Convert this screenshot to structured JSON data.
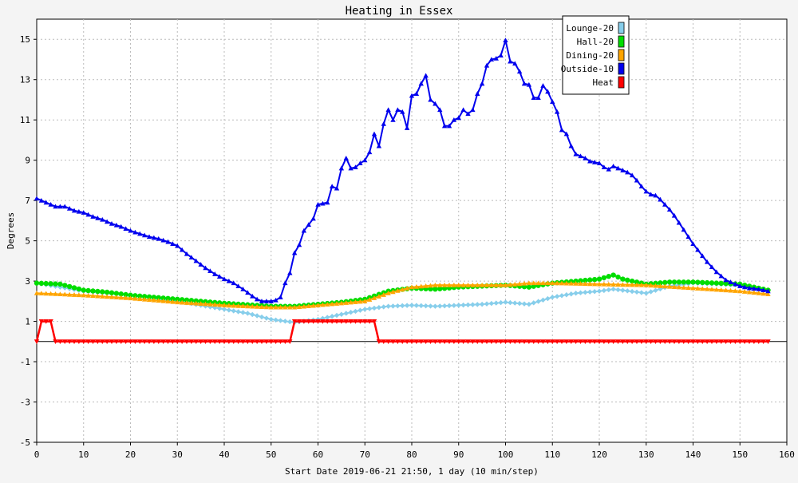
{
  "chart_data": {
    "type": "line",
    "title": "Heating in Essex",
    "xlabel": "Start Date 2019-06-21 21:50, 1 day (10 min/step)",
    "ylabel": "Degrees",
    "xlim": [
      0,
      160
    ],
    "ylim": [
      -5,
      16
    ],
    "x_ticks": [
      0,
      10,
      20,
      30,
      40,
      50,
      60,
      70,
      80,
      90,
      100,
      110,
      120,
      130,
      140,
      150,
      160
    ],
    "y_ticks": [
      -5,
      -3,
      -1,
      1,
      3,
      5,
      7,
      9,
      11,
      13,
      15
    ],
    "grid": true,
    "legend_position": "top-right",
    "series": [
      {
        "name": "Lounge-20",
        "color": "#87ceeb",
        "marker": "diamond",
        "points": [
          [
            0,
            2.9
          ],
          [
            10,
            2.5
          ],
          [
            20,
            2.3
          ],
          [
            30,
            2.0
          ],
          [
            40,
            1.6
          ],
          [
            45,
            1.4
          ],
          [
            50,
            1.1
          ],
          [
            55,
            0.95
          ],
          [
            60,
            1.1
          ],
          [
            65,
            1.35
          ],
          [
            70,
            1.6
          ],
          [
            75,
            1.75
          ],
          [
            80,
            1.8
          ],
          [
            85,
            1.75
          ],
          [
            90,
            1.8
          ],
          [
            95,
            1.85
          ],
          [
            100,
            1.95
          ],
          [
            105,
            1.85
          ],
          [
            110,
            2.2
          ],
          [
            115,
            2.4
          ],
          [
            120,
            2.5
          ],
          [
            123,
            2.6
          ],
          [
            130,
            2.4
          ],
          [
            135,
            2.75
          ],
          [
            140,
            2.9
          ],
          [
            145,
            2.85
          ],
          [
            150,
            2.8
          ],
          [
            156,
            2.55
          ]
        ]
      },
      {
        "name": "Hall-20",
        "color": "#00dd00",
        "marker": "circle",
        "points": [
          [
            0,
            2.9
          ],
          [
            5,
            2.85
          ],
          [
            10,
            2.55
          ],
          [
            15,
            2.45
          ],
          [
            20,
            2.3
          ],
          [
            30,
            2.1
          ],
          [
            40,
            1.9
          ],
          [
            50,
            1.75
          ],
          [
            55,
            1.75
          ],
          [
            60,
            1.85
          ],
          [
            65,
            1.95
          ],
          [
            70,
            2.1
          ],
          [
            75,
            2.5
          ],
          [
            80,
            2.65
          ],
          [
            85,
            2.6
          ],
          [
            90,
            2.7
          ],
          [
            95,
            2.75
          ],
          [
            100,
            2.8
          ],
          [
            105,
            2.7
          ],
          [
            110,
            2.9
          ],
          [
            115,
            3.0
          ],
          [
            120,
            3.1
          ],
          [
            123,
            3.3
          ],
          [
            125,
            3.1
          ],
          [
            130,
            2.85
          ],
          [
            135,
            2.95
          ],
          [
            140,
            2.95
          ],
          [
            145,
            2.9
          ],
          [
            150,
            2.85
          ],
          [
            156,
            2.55
          ]
        ]
      },
      {
        "name": "Dining-20",
        "color": "#ffa500",
        "marker": "triangle-up",
        "points": [
          [
            0,
            2.4
          ],
          [
            10,
            2.3
          ],
          [
            20,
            2.15
          ],
          [
            30,
            1.95
          ],
          [
            40,
            1.8
          ],
          [
            50,
            1.7
          ],
          [
            55,
            1.7
          ],
          [
            60,
            1.8
          ],
          [
            70,
            2.0
          ],
          [
            75,
            2.4
          ],
          [
            80,
            2.7
          ],
          [
            85,
            2.8
          ],
          [
            90,
            2.8
          ],
          [
            95,
            2.8
          ],
          [
            100,
            2.8
          ],
          [
            105,
            2.9
          ],
          [
            110,
            2.9
          ],
          [
            120,
            2.85
          ],
          [
            130,
            2.8
          ],
          [
            140,
            2.65
          ],
          [
            150,
            2.5
          ],
          [
            156,
            2.35
          ]
        ]
      },
      {
        "name": "Outside-10",
        "color": "#0000ee",
        "marker": "triangle-up",
        "points": [
          [
            0,
            7.1
          ],
          [
            2,
            6.9
          ],
          [
            4,
            6.7
          ],
          [
            6,
            6.7
          ],
          [
            8,
            6.5
          ],
          [
            10,
            6.4
          ],
          [
            12,
            6.2
          ],
          [
            14,
            6.05
          ],
          [
            16,
            5.85
          ],
          [
            18,
            5.7
          ],
          [
            20,
            5.5
          ],
          [
            22,
            5.35
          ],
          [
            24,
            5.2
          ],
          [
            26,
            5.1
          ],
          [
            28,
            4.95
          ],
          [
            30,
            4.75
          ],
          [
            32,
            4.35
          ],
          [
            34,
            4.0
          ],
          [
            36,
            3.65
          ],
          [
            38,
            3.35
          ],
          [
            40,
            3.1
          ],
          [
            42,
            2.9
          ],
          [
            44,
            2.6
          ],
          [
            46,
            2.25
          ],
          [
            47,
            2.1
          ],
          [
            48,
            2.0
          ],
          [
            50,
            2.0
          ],
          [
            51,
            2.05
          ],
          [
            52,
            2.2
          ],
          [
            53,
            2.9
          ],
          [
            54,
            3.4
          ],
          [
            55,
            4.4
          ],
          [
            56,
            4.8
          ],
          [
            57,
            5.5
          ],
          [
            58,
            5.8
          ],
          [
            59,
            6.1
          ],
          [
            60,
            6.8
          ],
          [
            61,
            6.85
          ],
          [
            62,
            6.9
          ],
          [
            63,
            7.7
          ],
          [
            64,
            7.6
          ],
          [
            65,
            8.6
          ],
          [
            66,
            9.1
          ],
          [
            67,
            8.6
          ],
          [
            68,
            8.65
          ],
          [
            69,
            8.85
          ],
          [
            70,
            9.0
          ],
          [
            71,
            9.4
          ],
          [
            72,
            10.3
          ],
          [
            73,
            9.7
          ],
          [
            74,
            10.8
          ],
          [
            75,
            11.5
          ],
          [
            76,
            11.0
          ],
          [
            77,
            11.5
          ],
          [
            78,
            11.4
          ],
          [
            79,
            10.6
          ],
          [
            80,
            12.2
          ],
          [
            81,
            12.3
          ],
          [
            82,
            12.8
          ],
          [
            83,
            13.2
          ],
          [
            84,
            12.0
          ],
          [
            85,
            11.8
          ],
          [
            86,
            11.5
          ],
          [
            87,
            10.7
          ],
          [
            88,
            10.7
          ],
          [
            89,
            11.0
          ],
          [
            90,
            11.1
          ],
          [
            91,
            11.5
          ],
          [
            92,
            11.3
          ],
          [
            93,
            11.5
          ],
          [
            94,
            12.3
          ],
          [
            95,
            12.8
          ],
          [
            96,
            13.7
          ],
          [
            97,
            14.0
          ],
          [
            98,
            14.05
          ],
          [
            99,
            14.2
          ],
          [
            100,
            14.95
          ],
          [
            101,
            13.9
          ],
          [
            102,
            13.8
          ],
          [
            103,
            13.4
          ],
          [
            104,
            12.8
          ],
          [
            105,
            12.75
          ],
          [
            106,
            12.1
          ],
          [
            107,
            12.1
          ],
          [
            108,
            12.7
          ],
          [
            109,
            12.4
          ],
          [
            110,
            11.9
          ],
          [
            111,
            11.4
          ],
          [
            112,
            10.5
          ],
          [
            113,
            10.3
          ],
          [
            114,
            9.7
          ],
          [
            115,
            9.3
          ],
          [
            116,
            9.2
          ],
          [
            117,
            9.1
          ],
          [
            118,
            8.95
          ],
          [
            119,
            8.9
          ],
          [
            120,
            8.85
          ],
          [
            121,
            8.65
          ],
          [
            122,
            8.55
          ],
          [
            123,
            8.7
          ],
          [
            124,
            8.6
          ],
          [
            125,
            8.5
          ],
          [
            126,
            8.4
          ],
          [
            127,
            8.25
          ],
          [
            128,
            8.0
          ],
          [
            129,
            7.7
          ],
          [
            130,
            7.45
          ],
          [
            131,
            7.3
          ],
          [
            132,
            7.25
          ],
          [
            133,
            7.05
          ],
          [
            134,
            6.8
          ],
          [
            135,
            6.55
          ],
          [
            136,
            6.25
          ],
          [
            137,
            5.9
          ],
          [
            138,
            5.55
          ],
          [
            139,
            5.2
          ],
          [
            140,
            4.85
          ],
          [
            141,
            4.55
          ],
          [
            142,
            4.25
          ],
          [
            143,
            3.95
          ],
          [
            144,
            3.7
          ],
          [
            145,
            3.45
          ],
          [
            146,
            3.25
          ],
          [
            147,
            3.05
          ],
          [
            148,
            2.95
          ],
          [
            149,
            2.85
          ],
          [
            150,
            2.75
          ],
          [
            152,
            2.65
          ],
          [
            154,
            2.6
          ],
          [
            156,
            2.5
          ]
        ]
      },
      {
        "name": "Heat",
        "color": "#ff0000",
        "marker": "triangle-down",
        "points": [
          [
            0,
            0
          ],
          [
            1,
            1
          ],
          [
            3,
            1
          ],
          [
            4,
            0
          ],
          [
            54,
            0
          ],
          [
            55,
            1
          ],
          [
            72,
            1
          ],
          [
            73,
            0
          ],
          [
            156,
            0
          ]
        ]
      }
    ]
  }
}
